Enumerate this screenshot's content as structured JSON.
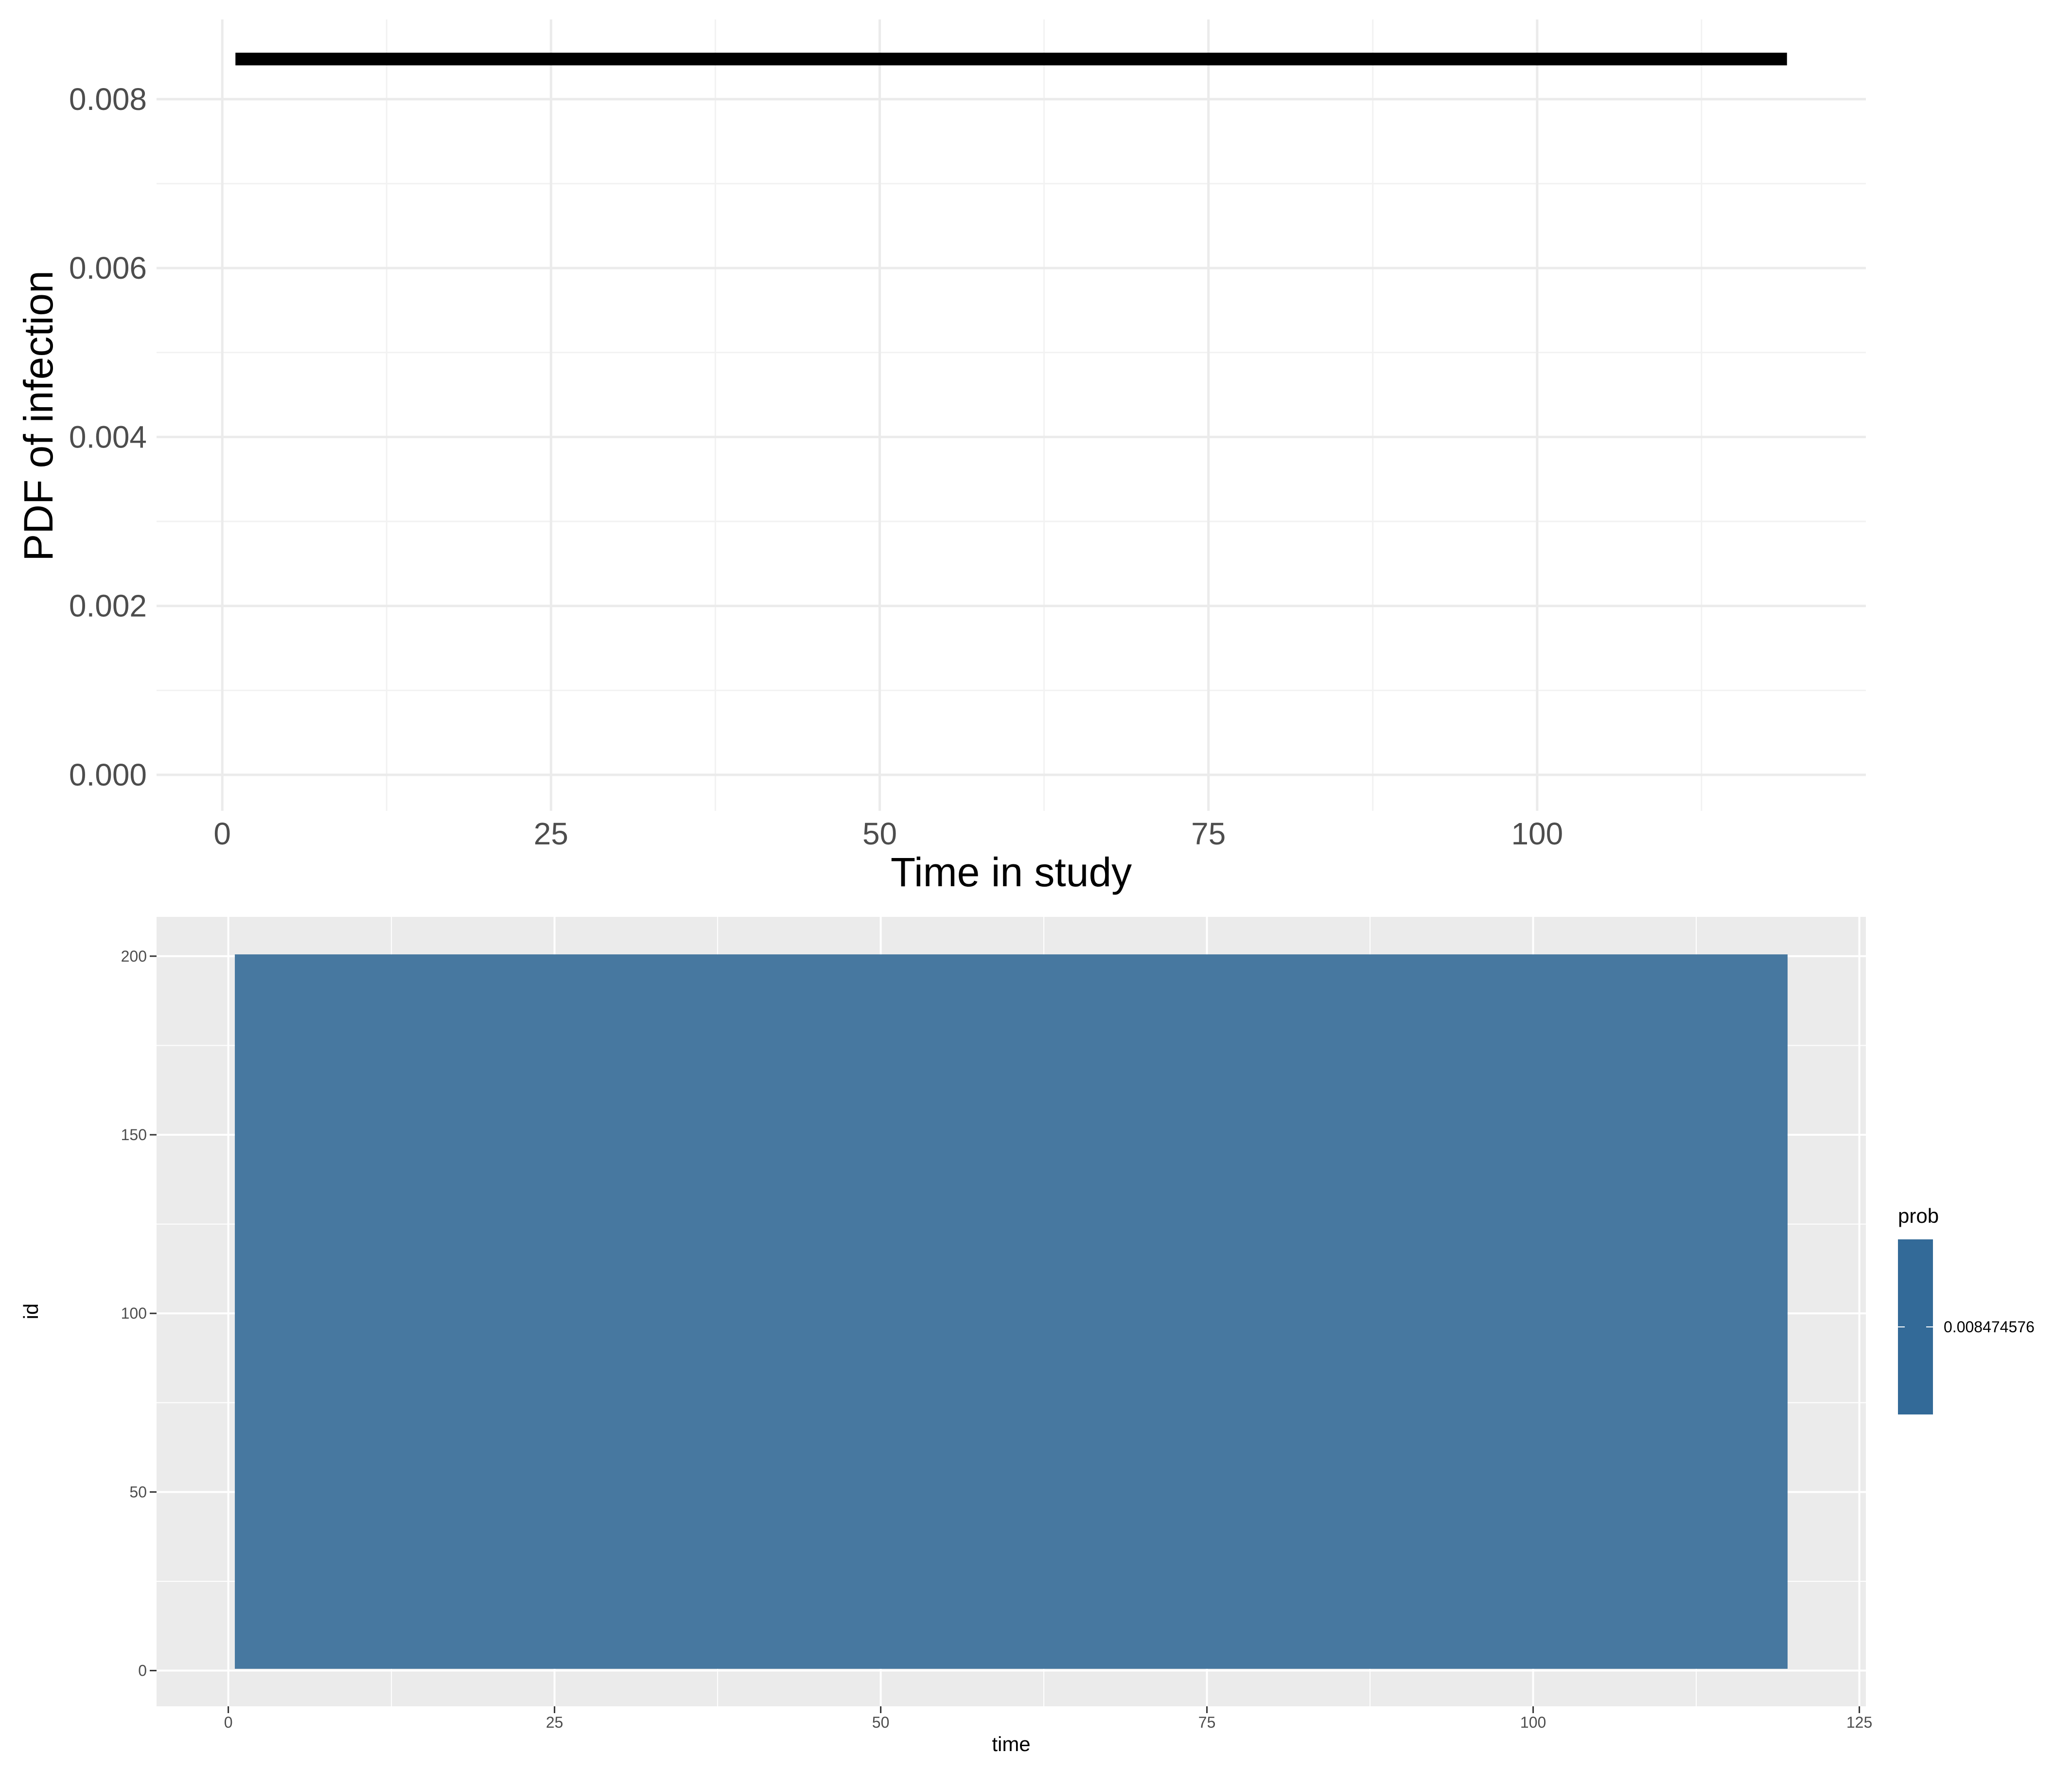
{
  "chart_data": [
    {
      "type": "line",
      "title": "",
      "xlabel": "Time in study",
      "ylabel": "PDF of infection",
      "xlim": [
        -5,
        125
      ],
      "ylim": [
        0,
        0.0085
      ],
      "x_ticks": [
        0,
        25,
        50,
        75,
        100
      ],
      "x_tick_labels": [
        "0",
        "25",
        "50",
        "75",
        "100"
      ],
      "y_ticks": [
        0,
        0.002,
        0.004,
        0.006,
        0.008
      ],
      "y_tick_labels": [
        "0.000",
        "0.002",
        "0.004",
        "0.006",
        "0.008"
      ],
      "grid": true,
      "theme": "minimal",
      "series": [
        {
          "x": [
            1,
            119
          ],
          "y": [
            0.008474576,
            0.008474576
          ],
          "color": "#000000"
        }
      ]
    },
    {
      "type": "heatmap",
      "title": "",
      "xlabel": "time",
      "ylabel": "id",
      "xlim": [
        -5.5,
        125.5
      ],
      "ylim": [
        -10,
        211
      ],
      "x_ticks": [
        0,
        25,
        50,
        75,
        100,
        125
      ],
      "x_tick_labels": [
        "0",
        "25",
        "50",
        "75",
        "100",
        "125"
      ],
      "y_ticks": [
        0,
        50,
        100,
        150,
        200
      ],
      "y_tick_labels": [
        "0",
        "50",
        "100",
        "150",
        "200"
      ],
      "grid": true,
      "theme": "gray",
      "tile": {
        "x_range": [
          0.5,
          119.5
        ],
        "y_range": [
          0.5,
          200.5
        ],
        "prob": 0.008474576,
        "color": "#4778a0"
      },
      "legend": {
        "title": "prob",
        "labels": [
          "0.008474576"
        ],
        "position": "right",
        "colors": [
          "#336a98",
          "#336a98"
        ]
      }
    }
  ]
}
